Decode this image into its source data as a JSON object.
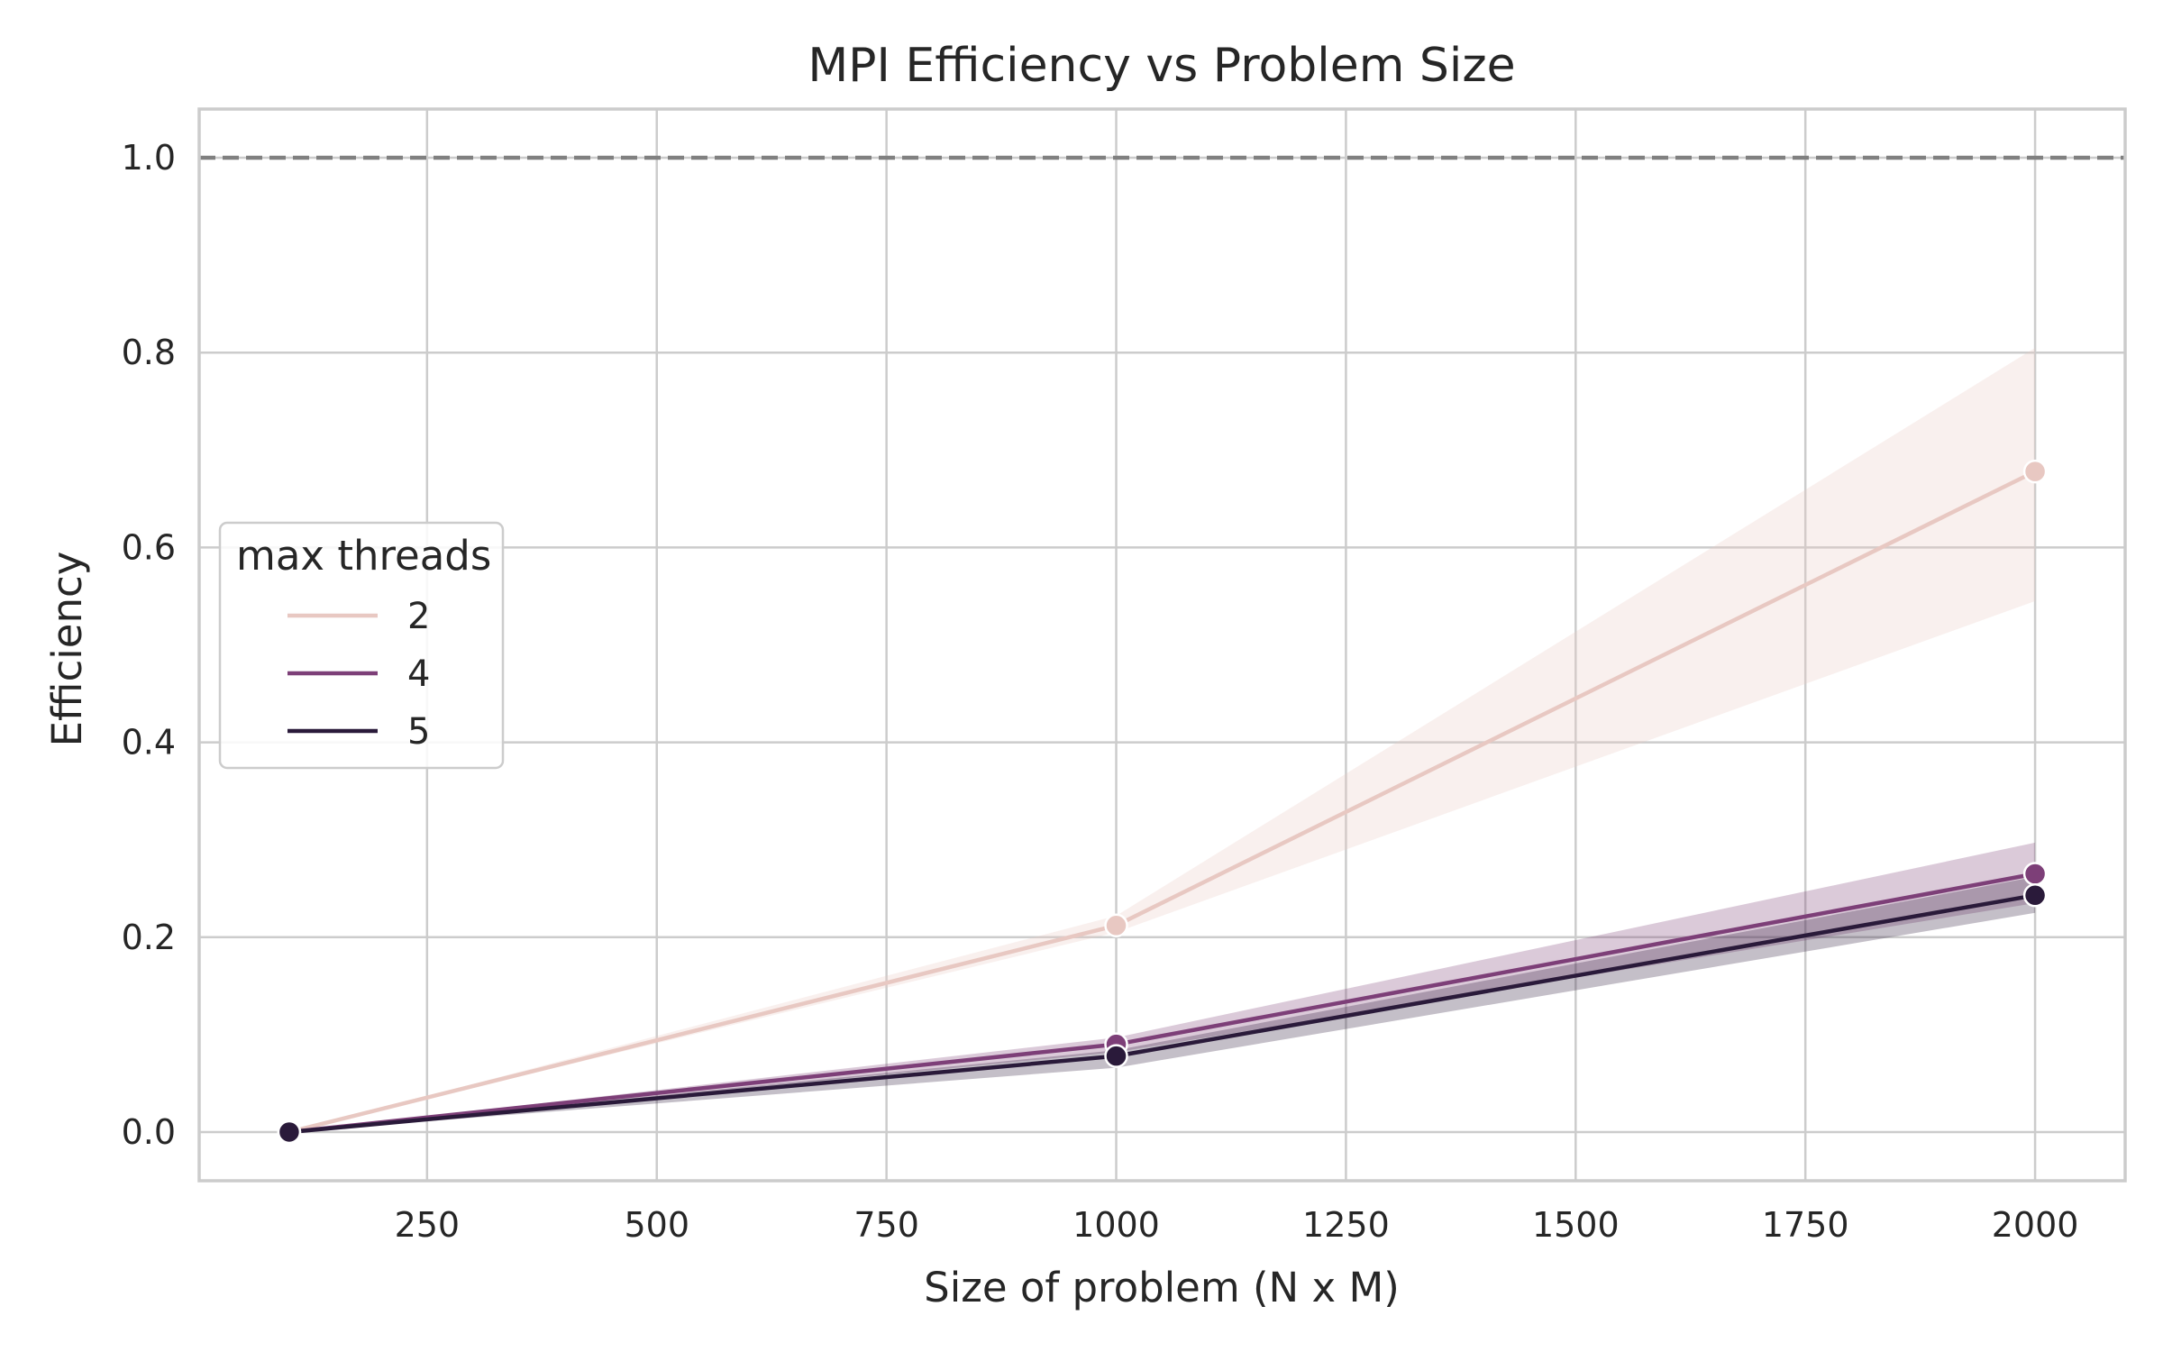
{
  "chart_data": {
    "type": "line",
    "title": "MPI Efficiency vs Problem Size",
    "xlabel": "Size of problem (N x M)",
    "ylabel": "Efficiency",
    "xlim": [
      2,
      2098
    ],
    "ylim": [
      -0.05,
      1.05
    ],
    "xticks": [
      250,
      500,
      750,
      1000,
      1250,
      1500,
      1750,
      2000
    ],
    "yticks": [
      0.0,
      0.2,
      0.4,
      0.6,
      0.8,
      1.0
    ],
    "xtick_labels": [
      "250",
      "500",
      "750",
      "1000",
      "1250",
      "1500",
      "1750",
      "2000"
    ],
    "ytick_labels": [
      "0.0",
      "0.2",
      "0.4",
      "0.6",
      "0.8",
      "1.0"
    ],
    "grid": true,
    "reference_line": {
      "y": 1.0,
      "style": "dashed",
      "color": "#808080"
    },
    "legend": {
      "title": "max threads",
      "placement": "center-left"
    },
    "x": [
      100,
      1000,
      2000
    ],
    "series": [
      {
        "name": "2",
        "color": "#e8c8c2",
        "values": [
          0.0,
          0.212,
          0.678
        ],
        "ci_lower": [
          0.0,
          0.205,
          0.545
        ],
        "ci_upper": [
          0.0,
          0.222,
          0.805
        ]
      },
      {
        "name": "4",
        "color": "#7d3f78",
        "values": [
          0.0,
          0.09,
          0.265
        ],
        "ci_lower": [
          0.0,
          0.082,
          0.235
        ],
        "ci_upper": [
          0.0,
          0.097,
          0.297
        ]
      },
      {
        "name": "5",
        "color": "#2a1a3a",
        "values": [
          0.0,
          0.078,
          0.243
        ],
        "ci_lower": [
          0.0,
          0.066,
          0.225
        ],
        "ci_upper": [
          0.0,
          0.084,
          0.262
        ]
      }
    ]
  }
}
